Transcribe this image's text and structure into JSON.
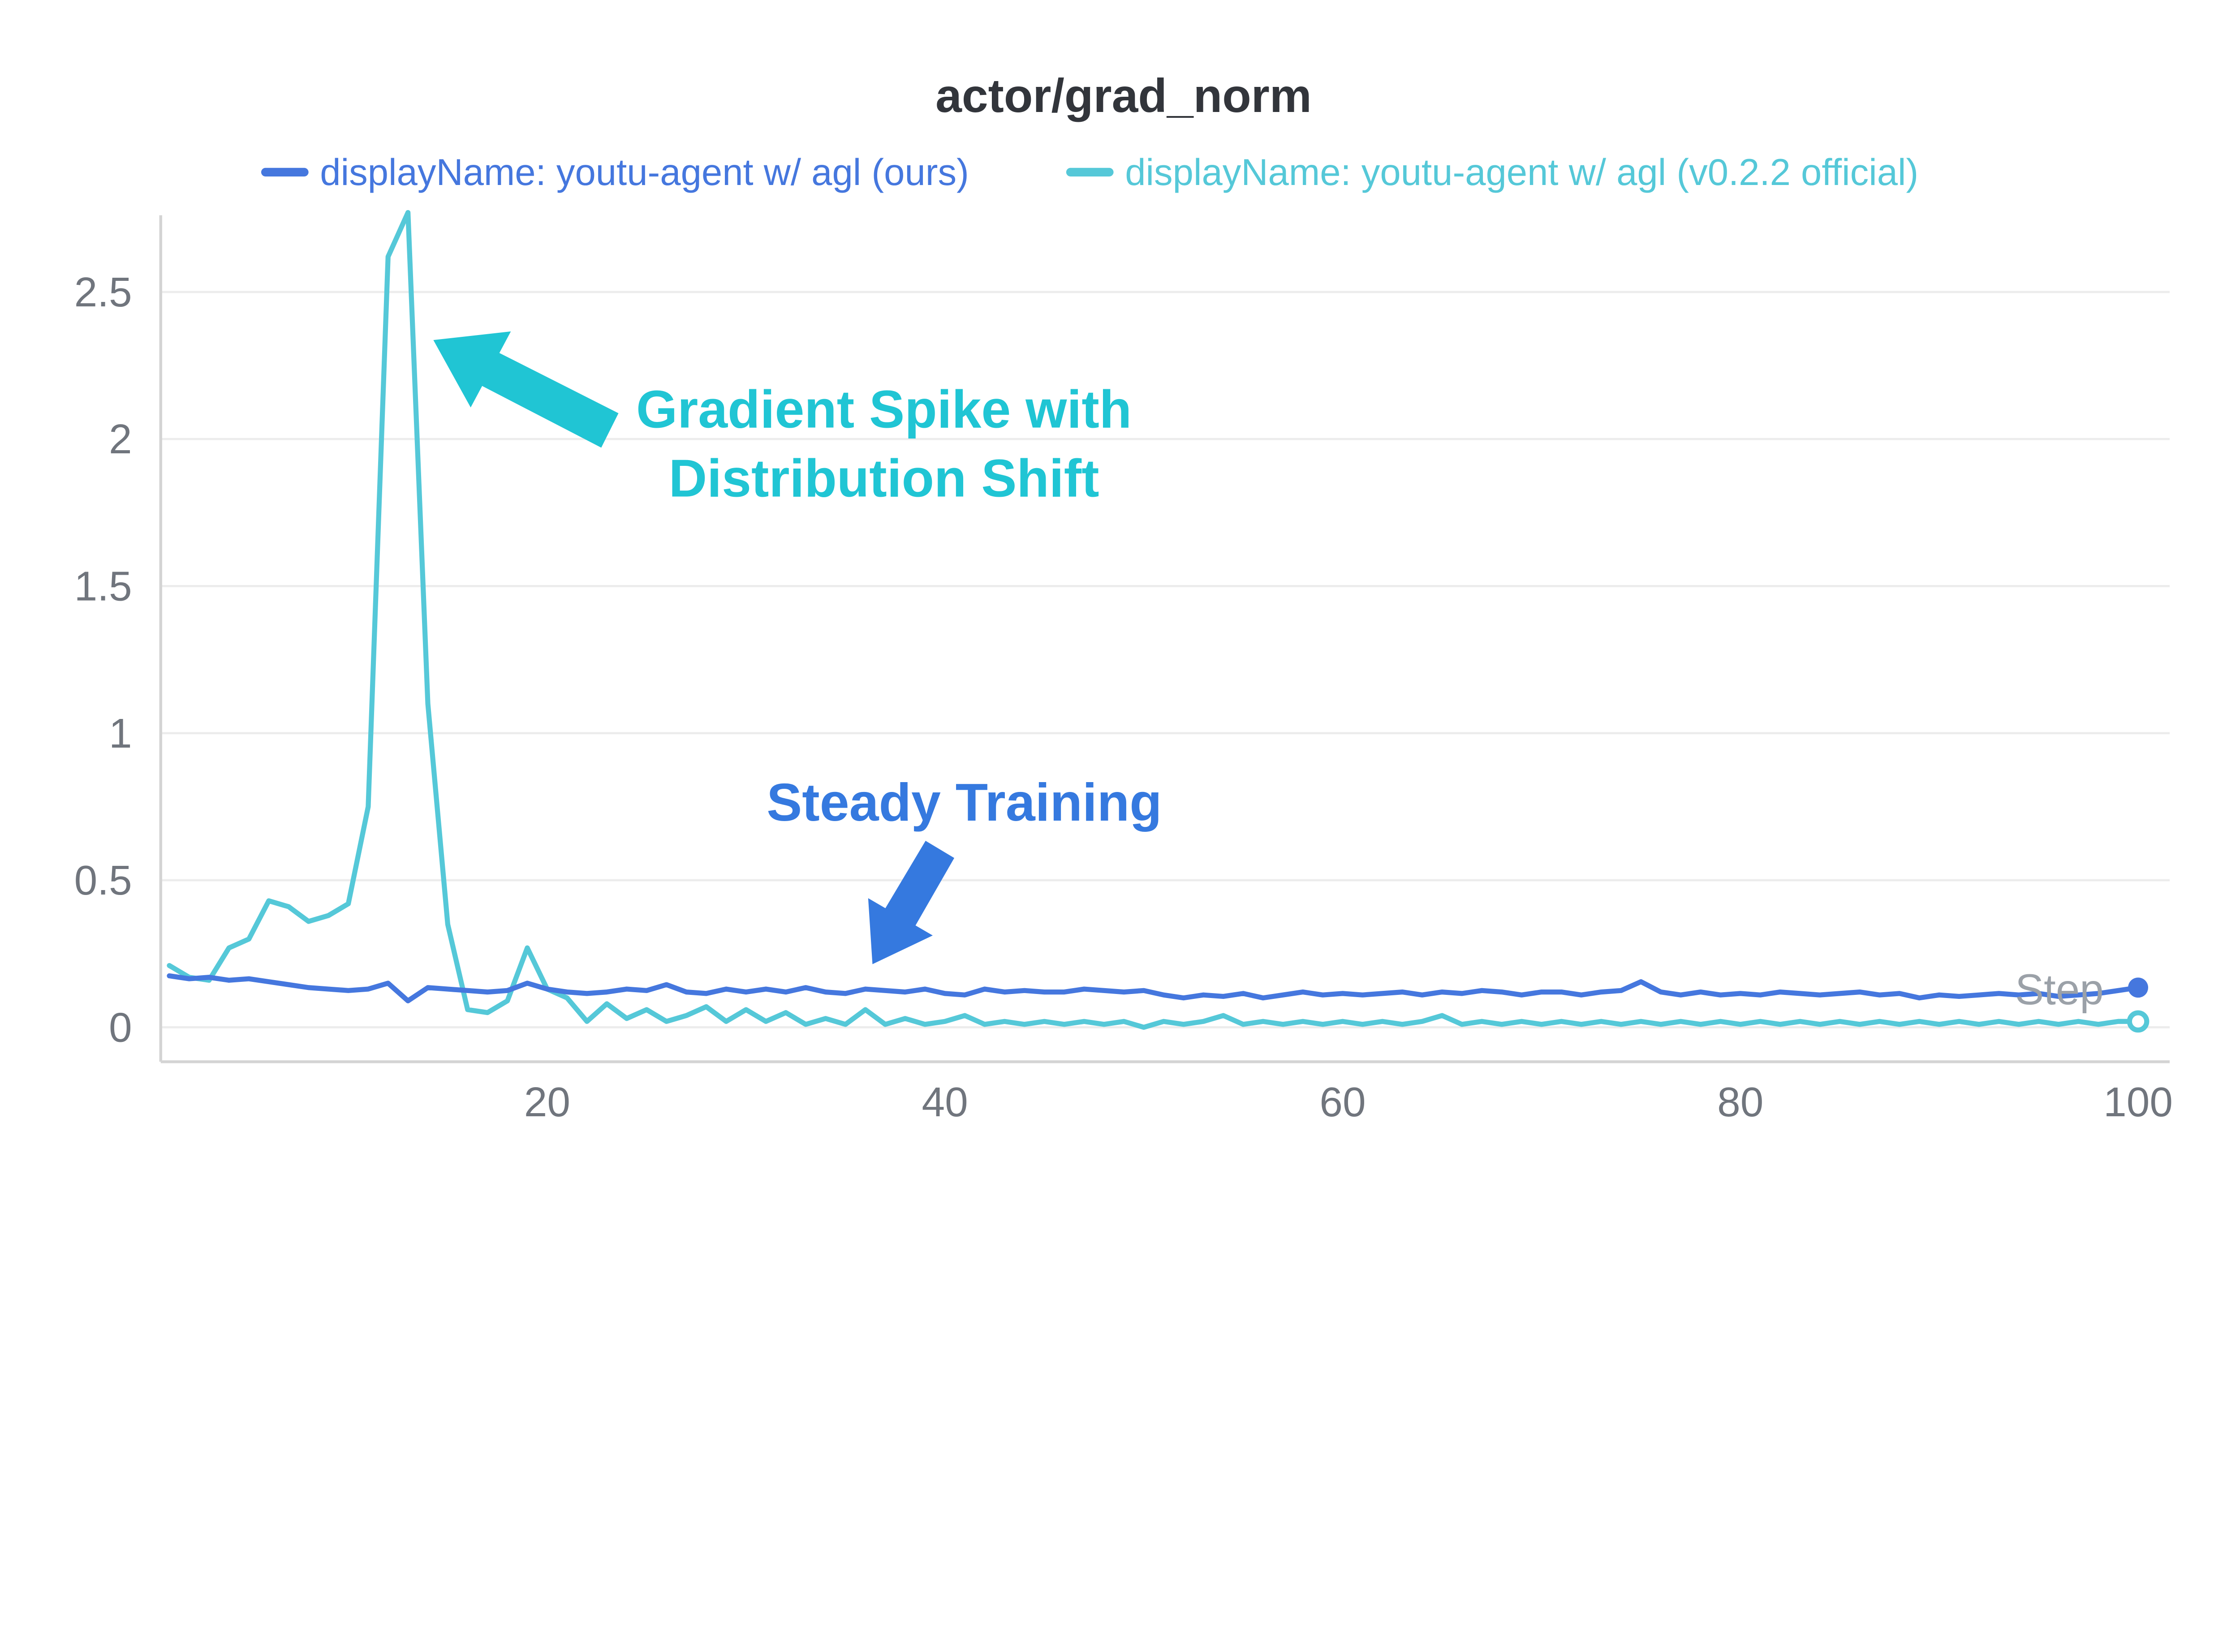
{
  "chart_data": {
    "type": "line",
    "title": "actor/grad_norm",
    "xlabel": "Step",
    "ylabel": "",
    "x_range": [
      1,
      100
    ],
    "x_step": 1,
    "x_ticks": [
      20,
      40,
      60,
      80,
      100
    ],
    "y_ticks": [
      0,
      0.5,
      1,
      1.5,
      2,
      2.5
    ],
    "ylim": [
      -0.12,
      2.87
    ],
    "grid": "horizontal",
    "legend_position": "top-center",
    "endpoint_markers": true,
    "series": [
      {
        "name": "displayName: youtu-agent w/ agl (ours)",
        "color": "#4577de",
        "values": [
          0.175,
          0.165,
          0.17,
          0.16,
          0.165,
          0.155,
          0.145,
          0.135,
          0.13,
          0.125,
          0.13,
          0.15,
          0.09,
          0.135,
          0.13,
          0.125,
          0.12,
          0.125,
          0.15,
          0.13,
          0.12,
          0.115,
          0.12,
          0.13,
          0.125,
          0.145,
          0.12,
          0.115,
          0.13,
          0.12,
          0.13,
          0.12,
          0.135,
          0.12,
          0.115,
          0.13,
          0.125,
          0.12,
          0.13,
          0.115,
          0.11,
          0.13,
          0.12,
          0.125,
          0.12,
          0.12,
          0.13,
          0.125,
          0.12,
          0.125,
          0.11,
          0.1,
          0.11,
          0.105,
          0.115,
          0.1,
          0.11,
          0.12,
          0.11,
          0.115,
          0.11,
          0.115,
          0.12,
          0.11,
          0.12,
          0.115,
          0.125,
          0.12,
          0.11,
          0.12,
          0.12,
          0.11,
          0.12,
          0.125,
          0.155,
          0.12,
          0.11,
          0.12,
          0.11,
          0.115,
          0.11,
          0.12,
          0.115,
          0.11,
          0.115,
          0.12,
          0.11,
          0.115,
          0.1,
          0.11,
          0.105,
          0.11,
          0.115,
          0.11,
          0.115,
          0.105,
          0.11,
          0.115,
          0.125,
          0.135
        ]
      },
      {
        "name": "displayName: youtu-agent w/ agl (v0.2.2 official)",
        "color": "#55c8d8",
        "values": [
          0.21,
          0.17,
          0.16,
          0.27,
          0.3,
          0.43,
          0.41,
          0.36,
          0.38,
          0.42,
          0.75,
          2.62,
          2.77,
          1.1,
          0.35,
          0.06,
          0.05,
          0.09,
          0.27,
          0.13,
          0.1,
          0.02,
          0.08,
          0.03,
          0.06,
          0.02,
          0.04,
          0.07,
          0.02,
          0.06,
          0.02,
          0.05,
          0.01,
          0.03,
          0.01,
          0.06,
          0.01,
          0.03,
          0.01,
          0.02,
          0.04,
          0.01,
          0.02,
          0.01,
          0.02,
          0.01,
          0.02,
          0.01,
          0.02,
          0.0,
          0.02,
          0.01,
          0.02,
          0.04,
          0.01,
          0.02,
          0.01,
          0.02,
          0.01,
          0.02,
          0.01,
          0.02,
          0.01,
          0.02,
          0.04,
          0.01,
          0.02,
          0.01,
          0.02,
          0.01,
          0.02,
          0.01,
          0.02,
          0.01,
          0.02,
          0.01,
          0.02,
          0.01,
          0.02,
          0.01,
          0.02,
          0.01,
          0.02,
          0.01,
          0.02,
          0.01,
          0.02,
          0.01,
          0.02,
          0.01,
          0.02,
          0.01,
          0.02,
          0.01,
          0.02,
          0.01,
          0.02,
          0.01,
          0.02,
          0.02
        ]
      }
    ]
  },
  "annotations": {
    "spike": {
      "line1": "Gradient Spike with",
      "line2": "Distribution Shift",
      "color": "#20c5d4"
    },
    "steady": {
      "text": "Steady Training",
      "color": "#3579df"
    }
  }
}
